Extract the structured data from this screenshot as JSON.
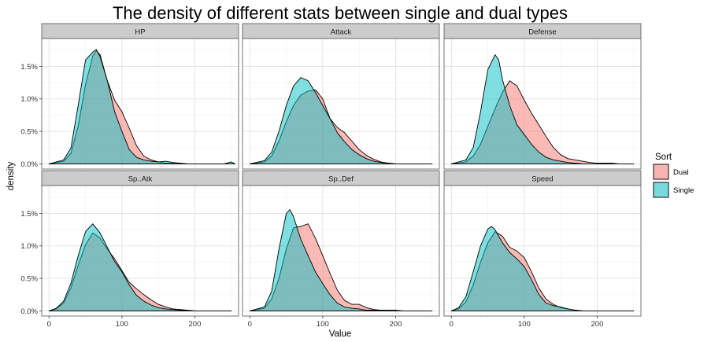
{
  "chart_data": {
    "type": "area",
    "title": "The density of different stats between single and dual types",
    "xlabel": "Value",
    "ylabel": "density",
    "xlim": [
      -10,
      260
    ],
    "ylim": [
      -0.0008,
      0.0193
    ],
    "x_ticks": [
      0,
      100,
      200
    ],
    "x_tick_labels": [
      "0",
      "100",
      "200"
    ],
    "y_ticks": [
      0,
      0.005,
      0.01,
      0.015
    ],
    "y_tick_labels": [
      "0.0%",
      "0.5%",
      "1.0%",
      "1.5%"
    ],
    "grid": true,
    "legend": {
      "title": "Sort",
      "position": "right",
      "entries": [
        {
          "label": "Dual",
          "color": "#f8766d"
        },
        {
          "label": "Single",
          "color": "#00bfc4"
        }
      ]
    },
    "facets": [
      {
        "label": "HP",
        "series": [
          {
            "name": "Dual",
            "x": [
              0,
              20,
              30,
              40,
              50,
              60,
              65,
              70,
              80,
              90,
              100,
              110,
              120,
              130,
              140,
              150,
              160,
              170,
              180,
              190,
              200,
              210,
              220,
              230,
              240,
              250,
              255
            ],
            "y": [
              0,
              0.0004,
              0.0016,
              0.0058,
              0.0122,
              0.0166,
              0.0174,
              0.0168,
              0.0128,
              0.0098,
              0.008,
              0.0055,
              0.0028,
              0.0012,
              0.0006,
              0.0003,
              0.0001,
              0.0001,
              0,
              0,
              0,
              0,
              0,
              0,
              0,
              0,
              0
            ]
          },
          {
            "name": "Single",
            "x": [
              0,
              20,
              30,
              40,
              50,
              60,
              65,
              70,
              80,
              90,
              100,
              110,
              120,
              130,
              140,
              150,
              160,
              170,
              180,
              190,
              200,
              210,
              220,
              230,
              240,
              250,
              255
            ],
            "y": [
              0,
              0.0006,
              0.0024,
              0.009,
              0.016,
              0.0172,
              0.0176,
              0.0165,
              0.0128,
              0.008,
              0.005,
              0.0022,
              0.001,
              0.0006,
              0.0004,
              0.0003,
              0.0004,
              0.0002,
              0.0001,
              0,
              0,
              0,
              0,
              0,
              0,
              0.0003,
              0
            ]
          }
        ]
      },
      {
        "label": "Attack",
        "series": [
          {
            "name": "Dual",
            "x": [
              0,
              20,
              30,
              40,
              50,
              60,
              70,
              80,
              90,
              100,
              110,
              120,
              130,
              140,
              150,
              160,
              170,
              180,
              190,
              200,
              210,
              220,
              230,
              240,
              250
            ],
            "y": [
              0,
              0.0003,
              0.0012,
              0.0035,
              0.0065,
              0.009,
              0.0106,
              0.0112,
              0.0114,
              0.01,
              0.007,
              0.0056,
              0.0048,
              0.0035,
              0.0022,
              0.0013,
              0.0007,
              0.0003,
              0.0001,
              0,
              0,
              0,
              0,
              0,
              0
            ]
          },
          {
            "name": "Single",
            "x": [
              0,
              20,
              30,
              40,
              50,
              60,
              70,
              80,
              90,
              100,
              110,
              120,
              130,
              140,
              150,
              160,
              170,
              180,
              190,
              200,
              210,
              220,
              230,
              240,
              250
            ],
            "y": [
              0,
              0.0005,
              0.0018,
              0.005,
              0.009,
              0.012,
              0.0133,
              0.0128,
              0.011,
              0.009,
              0.007,
              0.0048,
              0.0034,
              0.0022,
              0.0014,
              0.0008,
              0.0004,
              0.0002,
              0.0001,
              0,
              0,
              0,
              0,
              0,
              0
            ]
          }
        ]
      },
      {
        "label": "Defense",
        "series": [
          {
            "name": "Dual",
            "x": [
              0,
              20,
              30,
              40,
              50,
              60,
              70,
              80,
              90,
              100,
              110,
              120,
              130,
              140,
              150,
              160,
              170,
              180,
              190,
              200,
              210,
              220,
              230,
              240,
              250
            ],
            "y": [
              0,
              0.0003,
              0.0012,
              0.003,
              0.0058,
              0.0085,
              0.011,
              0.0128,
              0.012,
              0.0098,
              0.0078,
              0.006,
              0.0042,
              0.0025,
              0.0014,
              0.0008,
              0.0006,
              0.0004,
              0.0002,
              0.0001,
              0.0001,
              0.0001,
              0,
              0,
              0
            ]
          },
          {
            "name": "Single",
            "x": [
              0,
              20,
              30,
              40,
              50,
              60,
              65,
              70,
              80,
              90,
              100,
              110,
              120,
              130,
              140,
              150,
              160,
              170,
              180,
              190,
              200,
              210,
              220,
              230,
              240,
              250
            ],
            "y": [
              0,
              0.0006,
              0.0025,
              0.008,
              0.0145,
              0.0168,
              0.016,
              0.013,
              0.009,
              0.006,
              0.0045,
              0.003,
              0.0018,
              0.001,
              0.0006,
              0.0004,
              0.0002,
              0.0001,
              0,
              0,
              0,
              0,
              0,
              0,
              0,
              0
            ]
          }
        ]
      },
      {
        "label": "Sp..Atk",
        "series": [
          {
            "name": "Dual",
            "x": [
              0,
              10,
              20,
              30,
              40,
              50,
              60,
              70,
              80,
              90,
              100,
              110,
              120,
              130,
              140,
              150,
              160,
              170,
              180,
              190,
              200,
              210,
              220,
              230,
              240,
              250
            ],
            "y": [
              0,
              0.0003,
              0.0012,
              0.0035,
              0.007,
              0.0102,
              0.012,
              0.0112,
              0.0095,
              0.008,
              0.0062,
              0.0044,
              0.0034,
              0.0025,
              0.0017,
              0.001,
              0.0006,
              0.0003,
              0.0002,
              0.0001,
              0,
              0,
              0,
              0,
              0,
              0
            ]
          },
          {
            "name": "Single",
            "x": [
              0,
              10,
              20,
              30,
              40,
              50,
              60,
              70,
              80,
              90,
              100,
              110,
              120,
              130,
              140,
              150,
              160,
              170,
              180,
              190,
              200,
              210,
              220,
              230,
              240,
              250
            ],
            "y": [
              0,
              0.0004,
              0.0015,
              0.0042,
              0.0085,
              0.0122,
              0.0134,
              0.012,
              0.0098,
              0.0076,
              0.006,
              0.004,
              0.0024,
              0.0015,
              0.0009,
              0.0005,
              0.0003,
              0.0002,
              0.0001,
              0,
              0,
              0,
              0,
              0,
              0,
              0
            ]
          }
        ]
      },
      {
        "label": "Sp..Def",
        "series": [
          {
            "name": "Dual",
            "x": [
              0,
              20,
              30,
              40,
              50,
              60,
              70,
              80,
              90,
              100,
              110,
              120,
              130,
              140,
              150,
              160,
              170,
              180,
              190,
              200,
              210,
              220,
              230,
              240,
              250
            ],
            "y": [
              0,
              0.0004,
              0.0018,
              0.005,
              0.0095,
              0.0128,
              0.013,
              0.0134,
              0.0112,
              0.0085,
              0.0058,
              0.0032,
              0.0016,
              0.001,
              0.001,
              0.0005,
              0.0002,
              0.0001,
              0.0001,
              0.0001,
              0,
              0,
              0,
              0,
              0
            ]
          },
          {
            "name": "Single",
            "x": [
              0,
              20,
              30,
              40,
              50,
              55,
              60,
              70,
              80,
              90,
              100,
              110,
              120,
              130,
              140,
              150,
              160,
              170,
              180,
              190,
              200,
              210,
              220,
              230,
              240,
              250
            ],
            "y": [
              0,
              0.0006,
              0.003,
              0.0095,
              0.015,
              0.0156,
              0.0145,
              0.011,
              0.0085,
              0.006,
              0.0042,
              0.0025,
              0.0012,
              0.0006,
              0.0004,
              0.0003,
              0.0001,
              0.0001,
              0,
              0,
              0,
              0,
              0,
              0,
              0,
              0
            ]
          }
        ]
      },
      {
        "label": "Speed",
        "series": [
          {
            "name": "Dual",
            "x": [
              0,
              10,
              20,
              30,
              40,
              50,
              60,
              70,
              80,
              90,
              100,
              110,
              120,
              130,
              140,
              150,
              160,
              170,
              180,
              190,
              200,
              210,
              220,
              230,
              240,
              250
            ],
            "y": [
              0,
              0.0003,
              0.0014,
              0.004,
              0.0075,
              0.0105,
              0.0122,
              0.0115,
              0.0098,
              0.0092,
              0.0082,
              0.006,
              0.0035,
              0.0018,
              0.001,
              0.0005,
              0.0003,
              0.0001,
              0,
              0,
              0,
              0,
              0,
              0,
              0,
              0
            ]
          },
          {
            "name": "Single",
            "x": [
              0,
              10,
              20,
              30,
              40,
              50,
              55,
              60,
              70,
              80,
              90,
              100,
              110,
              120,
              130,
              140,
              150,
              160,
              170,
              180,
              190,
              200,
              210,
              220,
              230,
              240,
              250
            ],
            "y": [
              0,
              0.0005,
              0.0022,
              0.006,
              0.01,
              0.0126,
              0.013,
              0.0125,
              0.0105,
              0.009,
              0.008,
              0.0068,
              0.0048,
              0.0025,
              0.0012,
              0.0008,
              0.0006,
              0.0003,
              0.0001,
              0,
              0,
              0,
              0,
              0,
              0,
              0,
              0
            ]
          }
        ]
      }
    ]
  }
}
